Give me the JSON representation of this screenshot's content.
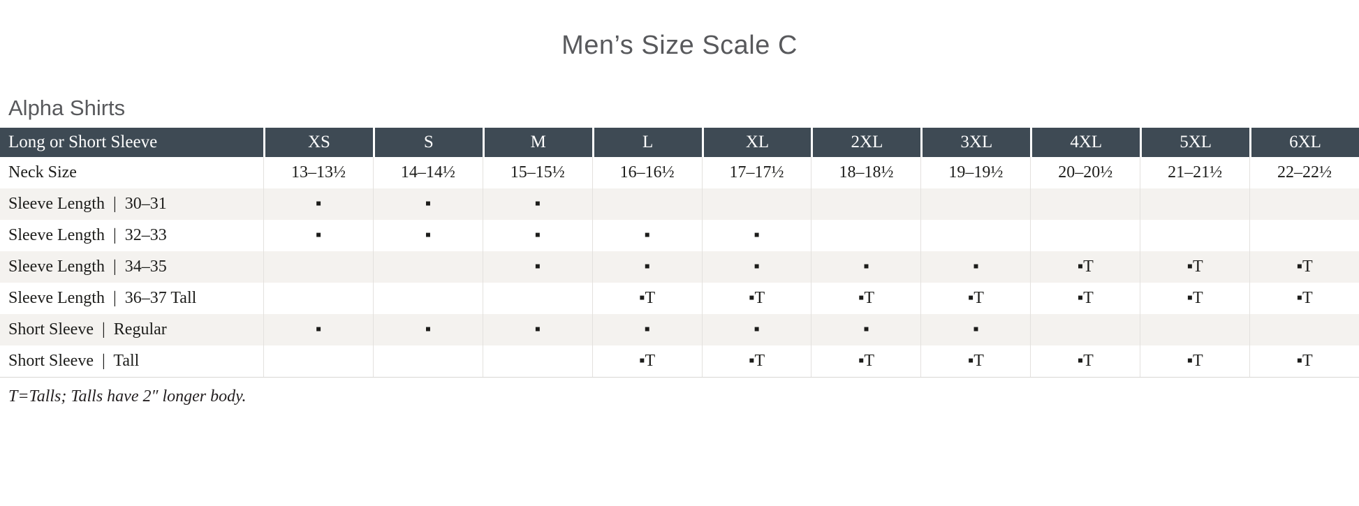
{
  "page": {
    "title": "Men’s Size Scale C",
    "section_heading": "Alpha Shirts",
    "footnote": "T=Talls; Talls have 2″ longer body."
  },
  "colors": {
    "header_bg": "#3e4a54",
    "header_text": "#fdfdfd",
    "stripe_bg": "#f4f2ef",
    "divider": "#e3e1de",
    "body_text": "#1c1c1a",
    "heading_text": "#58595c"
  },
  "legend": {
    "available_mark": "▪",
    "tall_mark": "▪T"
  },
  "table": {
    "header": {
      "label": "Long or Short Sleeve",
      "sizes": [
        "XS",
        "S",
        "M",
        "L",
        "XL",
        "2XL",
        "3XL",
        "4XL",
        "5XL",
        "6XL"
      ]
    },
    "rows": [
      {
        "label": "Neck Size",
        "cells": [
          "13–13½",
          "14–14½",
          "15–15½",
          "16–16½",
          "17–17½",
          "18–18½",
          "19–19½",
          "20–20½",
          "21–21½",
          "22–22½"
        ]
      },
      {
        "label": "Sleeve Length  |  30–31",
        "cells": [
          "▪",
          "▪",
          "▪",
          "",
          "",
          "",
          "",
          "",
          "",
          ""
        ]
      },
      {
        "label": "Sleeve Length  |  32–33",
        "cells": [
          "▪",
          "▪",
          "▪",
          "▪",
          "▪",
          "",
          "",
          "",
          "",
          ""
        ]
      },
      {
        "label": "Sleeve Length  |  34–35",
        "cells": [
          "",
          "",
          "▪",
          "▪",
          "▪",
          "▪",
          "▪",
          "▪T",
          "▪T",
          "▪T"
        ]
      },
      {
        "label": "Sleeve Length  |  36–37 Tall",
        "cells": [
          "",
          "",
          "",
          "▪T",
          "▪T",
          "▪T",
          "▪T",
          "▪T",
          "▪T",
          "▪T"
        ]
      },
      {
        "label": "Short Sleeve  |  Regular",
        "cells": [
          "▪",
          "▪",
          "▪",
          "▪",
          "▪",
          "▪",
          "▪",
          "",
          "",
          ""
        ]
      },
      {
        "label": "Short Sleeve  |  Tall",
        "cells": [
          "",
          "",
          "",
          "▪T",
          "▪T",
          "▪T",
          "▪T",
          "▪T",
          "▪T",
          "▪T"
        ]
      }
    ]
  }
}
